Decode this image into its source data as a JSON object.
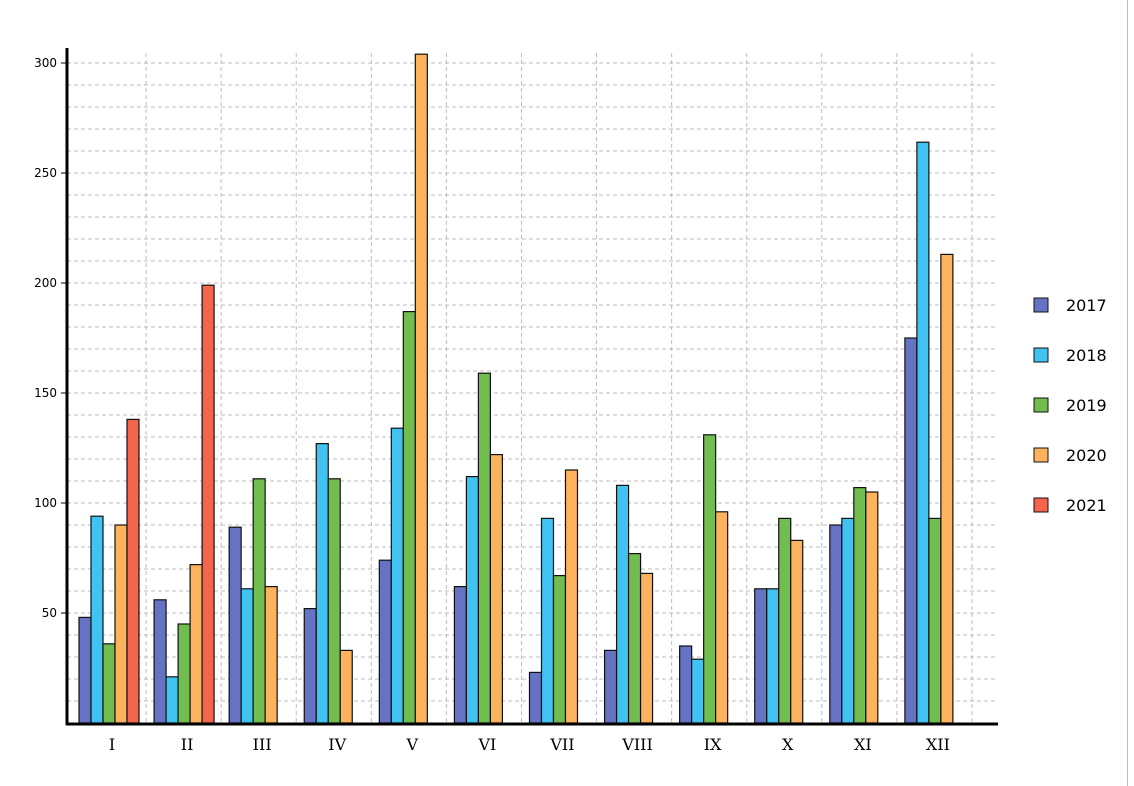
{
  "chart_data": {
    "type": "bar",
    "categories": [
      "I",
      "II",
      "III",
      "IV",
      "V",
      "VI",
      "VII",
      "VIII",
      "IX",
      "X",
      "XI",
      "XII"
    ],
    "series": [
      {
        "name": "2017",
        "color": "#6673c4",
        "values": [
          48,
          56,
          89,
          52,
          74,
          62,
          23,
          33,
          35,
          61,
          90,
          175
        ]
      },
      {
        "name": "2018",
        "color": "#41c3f1",
        "values": [
          94,
          21,
          61,
          127,
          134,
          112,
          93,
          108,
          29,
          61,
          93,
          264
        ]
      },
      {
        "name": "2019",
        "color": "#72bd4f",
        "values": [
          36,
          45,
          111,
          111,
          187,
          159,
          67,
          77,
          131,
          93,
          107,
          93
        ]
      },
      {
        "name": "2020",
        "color": "#fdb25e",
        "values": [
          90,
          72,
          62,
          33,
          304,
          122,
          115,
          68,
          96,
          83,
          105,
          213
        ]
      },
      {
        "name": "2021",
        "color": "#f5654b",
        "values": [
          138,
          199,
          null,
          null,
          null,
          null,
          null,
          null,
          null,
          null,
          null,
          null
        ]
      }
    ],
    "yticks": [
      50,
      100,
      150,
      200,
      250,
      300
    ],
    "ylim": [
      0,
      300
    ],
    "grid": true,
    "legend_position": "right",
    "title": "",
    "xlabel": "",
    "ylabel": ""
  }
}
